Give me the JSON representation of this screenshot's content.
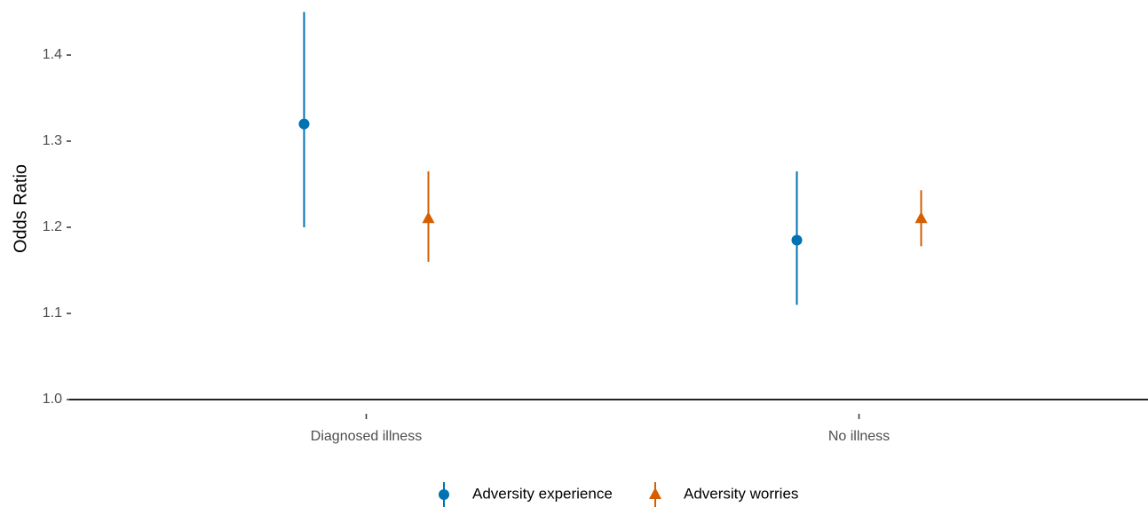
{
  "chart_data": {
    "type": "pointrange",
    "y_label": "Odds Ratio",
    "categories": [
      "Diagnosed illness",
      "No illness"
    ],
    "series": [
      {
        "name": "Adversity experience",
        "color": "#0072B2",
        "shape": "circle",
        "values": [
          1.32,
          1.185
        ],
        "lower": [
          1.2,
          1.11
        ],
        "upper": [
          1.45,
          1.265
        ]
      },
      {
        "name": "Adversity worries",
        "color": "#D55E00",
        "shape": "triangle",
        "values": [
          1.21,
          1.21
        ],
        "lower": [
          1.16,
          1.178
        ],
        "upper": [
          1.265,
          1.243
        ]
      }
    ],
    "ylim": [
      0.98,
      1.45
    ],
    "yticks": [
      {
        "value": 1,
        "label": "1.0"
      },
      1.1,
      1.2,
      1.3,
      1.4
    ],
    "hline": 1,
    "legend": "bottom"
  }
}
